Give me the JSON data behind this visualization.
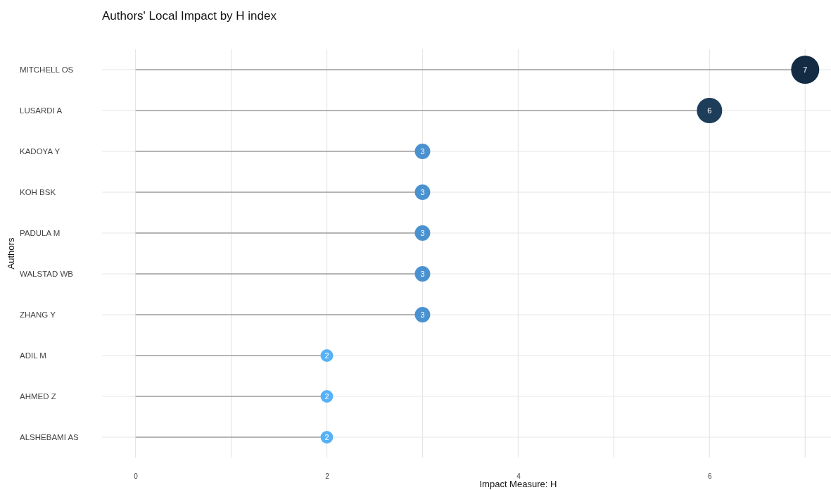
{
  "chart_data": {
    "type": "lollipop",
    "title": "Authors' Local Impact by H index",
    "xlabel": "Impact Measure: H",
    "ylabel": "Authors",
    "orientation": "horizontal",
    "categories": [
      "MITCHELL OS",
      "LUSARDI A",
      "KADOYA Y",
      "KOH BSK",
      "PADULA M",
      "WALSTAD WB",
      "ZHANG Y",
      "ADIL M",
      "AHMED Z",
      "ALSHEBAMI AS"
    ],
    "values": [
      7,
      6,
      3,
      3,
      3,
      3,
      3,
      2,
      2,
      2
    ],
    "colors": [
      "#132b43",
      "#1d3d5b",
      "#4a91d0",
      "#4a91d0",
      "#4a91d0",
      "#4a91d0",
      "#4a91d0",
      "#56b1f7",
      "#56b1f7",
      "#56b1f7"
    ],
    "sizes": [
      1,
      0.81,
      0.3,
      0.3,
      0.3,
      0.3,
      0.3,
      0.2,
      0.2,
      0.2
    ],
    "xlim": [
      -0.35,
      7.27
    ],
    "xticks": [
      0,
      {
        "value": 1,
        "label": null
      },
      2,
      {
        "value": 3,
        "label": null
      },
      4,
      {
        "value": 5,
        "label": null
      },
      6,
      {
        "value": 7,
        "label": null
      }
    ],
    "grid": true,
    "data_labels": true
  }
}
